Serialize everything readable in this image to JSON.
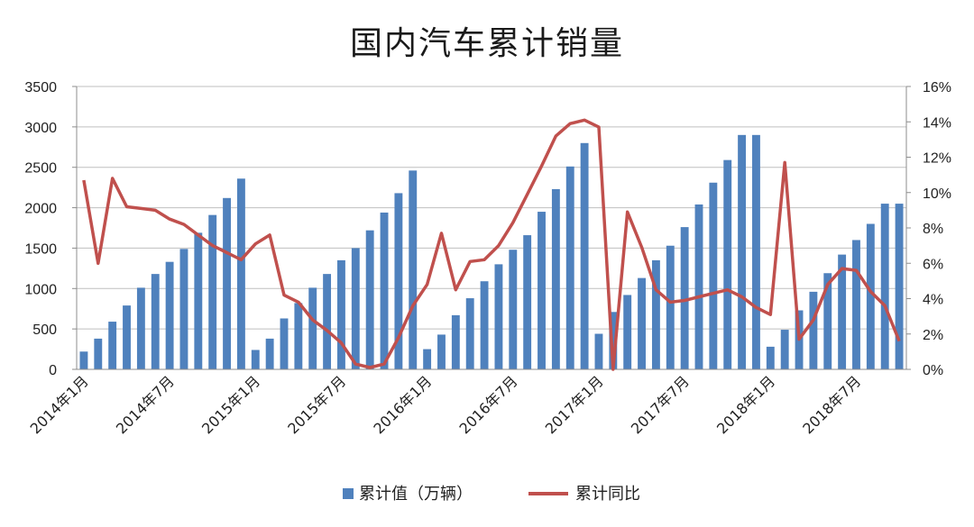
{
  "chart_data": {
    "type": "bar+line",
    "title": "国内汽车累计销量",
    "x": [
      "2014-01",
      "2014-02",
      "2014-03",
      "2014-04",
      "2014-05",
      "2014-06",
      "2014-07",
      "2014-08",
      "2014-09",
      "2014-10",
      "2014-11",
      "2014-12",
      "2015-01",
      "2015-02",
      "2015-03",
      "2015-04",
      "2015-05",
      "2015-06",
      "2015-07",
      "2015-08",
      "2015-09",
      "2015-10",
      "2015-11",
      "2015-12",
      "2016-01",
      "2016-02",
      "2016-03",
      "2016-04",
      "2016-05",
      "2016-06",
      "2016-07",
      "2016-08",
      "2016-09",
      "2016-10",
      "2016-11",
      "2016-12",
      "2017-01",
      "2017-02",
      "2017-03",
      "2017-04",
      "2017-05",
      "2017-06",
      "2017-07",
      "2017-08",
      "2017-09",
      "2017-10",
      "2017-11",
      "2017-12",
      "2018-01",
      "2018-02",
      "2018-03",
      "2018-04",
      "2018-05",
      "2018-06",
      "2018-07",
      "2018-08",
      "2018-09",
      "2018-10"
    ],
    "x_tick_labels": [
      {
        "index": 0,
        "label": "2014年1月"
      },
      {
        "index": 6,
        "label": "2014年7月"
      },
      {
        "index": 12,
        "label": "2015年1月"
      },
      {
        "index": 18,
        "label": "2015年7月"
      },
      {
        "index": 24,
        "label": "2016年1月"
      },
      {
        "index": 30,
        "label": "2016年7月"
      },
      {
        "index": 36,
        "label": "2017年1月"
      },
      {
        "index": 42,
        "label": "2017年7月"
      },
      {
        "index": 48,
        "label": "2018年1月"
      },
      {
        "index": 54,
        "label": "2018年7月"
      }
    ],
    "series": [
      {
        "name": "累计值（万辆）",
        "kind": "bar",
        "axis": "left",
        "color": "#4f81bd",
        "values": [
          220,
          380,
          590,
          790,
          1010,
          1180,
          1330,
          1490,
          1690,
          1910,
          2120,
          2360,
          240,
          380,
          630,
          820,
          1010,
          1180,
          1350,
          1500,
          1720,
          1940,
          2180,
          2460,
          250,
          430,
          670,
          880,
          1090,
          1300,
          1480,
          1660,
          1950,
          2230,
          2510,
          2800,
          440,
          710,
          920,
          1130,
          1350,
          1530,
          1760,
          2040,
          2310,
          2590,
          2900,
          2900,
          280,
          490,
          730,
          960,
          1190,
          1420,
          1600,
          1800,
          2050,
          2050
        ]
      },
      {
        "name": "累计同比",
        "kind": "line",
        "axis": "right",
        "color": "#c0504d",
        "values": [
          10.7,
          6.0,
          10.8,
          9.2,
          9.1,
          9.0,
          8.5,
          8.2,
          7.6,
          7.0,
          6.6,
          6.2,
          7.1,
          7.6,
          4.2,
          3.8,
          2.8,
          2.2,
          1.5,
          0.3,
          0.1,
          0.3,
          1.8,
          3.6,
          4.8,
          7.7,
          4.5,
          6.1,
          6.2,
          7.0,
          8.3,
          9.9,
          11.5,
          13.2,
          13.9,
          14.1,
          13.7,
          0.0,
          8.9,
          6.9,
          4.5,
          3.8,
          3.9,
          4.1,
          4.3,
          4.5,
          4.1,
          3.5,
          3.1,
          11.7,
          1.7,
          2.8,
          4.8,
          5.7,
          5.6,
          4.4,
          3.6,
          1.6
        ]
      }
    ],
    "y_left": {
      "min": 0,
      "max": 3500,
      "ticks": [
        0,
        500,
        1000,
        1500,
        2000,
        2500,
        3000,
        3500
      ]
    },
    "y_right": {
      "min": 0,
      "max": 16,
      "ticks": [
        "0%",
        "2%",
        "4%",
        "6%",
        "8%",
        "10%",
        "12%",
        "14%",
        "16%"
      ]
    },
    "grid": "horizontal",
    "legend_position": "bottom-center"
  }
}
